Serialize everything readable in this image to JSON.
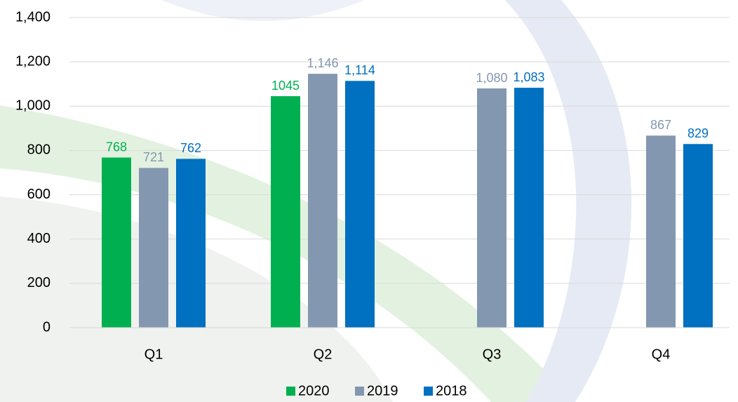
{
  "chart_data": {
    "type": "bar",
    "categories": [
      "Q1",
      "Q2",
      "Q3",
      "Q4"
    ],
    "series": [
      {
        "name": "2020",
        "color": "#00b050",
        "values": [
          768,
          1045,
          null,
          null
        ]
      },
      {
        "name": "2019",
        "color": "#8497b0",
        "values": [
          721,
          1146,
          1080,
          867
        ],
        "value_labels": [
          "721",
          "1,146",
          "1,080",
          "867"
        ]
      },
      {
        "name": "2018",
        "color": "#0070c0",
        "values": [
          762,
          1114,
          1083,
          829
        ],
        "value_labels": [
          "762",
          "1,114",
          "1,083",
          "829"
        ]
      }
    ],
    "ylim": [
      0,
      1400
    ],
    "yticks": [
      0,
      200,
      400,
      600,
      800,
      {
        "value": 1000,
        "label": "1,000"
      },
      {
        "value": 1200,
        "label": "1,200"
      },
      {
        "value": 1400,
        "label": "1,400"
      }
    ],
    "grid": true,
    "legend": "bottom"
  }
}
